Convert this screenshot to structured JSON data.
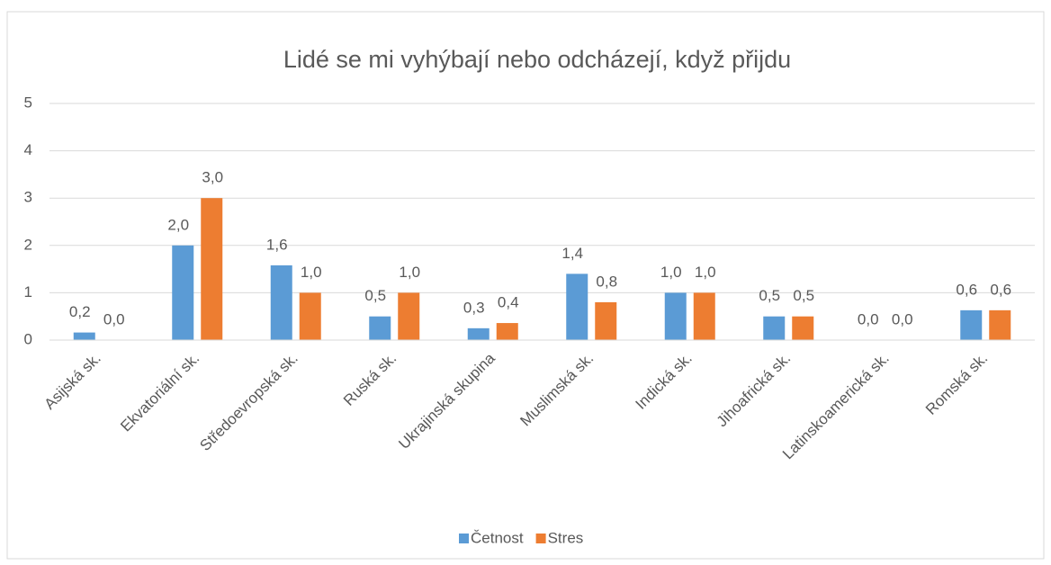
{
  "chart_data": {
    "type": "bar",
    "title": "Lidé se mi vyhýbají nebo odcházejí, když přijdu",
    "categories": [
      "Asijská sk.",
      "Ekvatoriální sk.",
      "Středoevropská sk.",
      "Ruská sk.",
      "Ukrajinská skupina",
      "Muslimská sk.",
      "Indická sk.",
      "Jihoafrická sk.",
      "Latinskoamerická sk.",
      "Romská sk."
    ],
    "series": [
      {
        "name": "Četnost",
        "color": "#5b9bd5",
        "values": [
          0.16,
          2.0,
          1.58,
          0.5,
          0.25,
          1.4,
          1.0,
          0.5,
          0.0,
          0.63
        ],
        "value_labels": [
          "0,2",
          "2,0",
          "1,6",
          "0,5",
          "0,3",
          "1,4",
          "1,0",
          "0,5",
          "0,0",
          "0,6"
        ]
      },
      {
        "name": "Stres",
        "color": "#ed7d31",
        "values": [
          0.0,
          3.0,
          1.0,
          1.0,
          0.36,
          0.8,
          1.0,
          0.5,
          0.0,
          0.63
        ],
        "value_labels": [
          "0,0",
          "3,0",
          "1,0",
          "1,0",
          "0,4",
          "0,8",
          "1,0",
          "0,5",
          "0,0",
          "0,6"
        ]
      }
    ],
    "ylim": [
      0,
      5
    ],
    "yticks": [
      0,
      1,
      2,
      3,
      4,
      5
    ],
    "grid": true,
    "legend": "bottom"
  }
}
